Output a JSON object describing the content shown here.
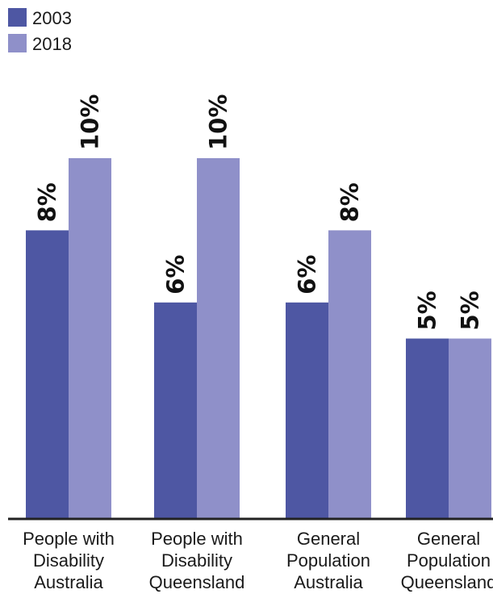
{
  "chart_data": {
    "type": "bar",
    "categories": [
      [
        "People with",
        "Disability",
        "Australia"
      ],
      [
        "People with",
        "Disability",
        "Queensland"
      ],
      [
        "General",
        "Population",
        "Australia"
      ],
      [
        "General",
        "Population",
        "Queensland"
      ]
    ],
    "series": [
      {
        "name": "2003",
        "color": "#4e57a3",
        "values": [
          8,
          6,
          6,
          5
        ],
        "labels": [
          "8%",
          "6%",
          "6%",
          "5%"
        ]
      },
      {
        "name": "2018",
        "color": "#8f90c9",
        "values": [
          10,
          10,
          8,
          5
        ],
        "labels": [
          "10%",
          "10%",
          "8%",
          "5%"
        ]
      }
    ],
    "ylim": [
      0,
      10
    ],
    "grid": false,
    "legend_position": "top-left",
    "axis_color": "#222222"
  }
}
